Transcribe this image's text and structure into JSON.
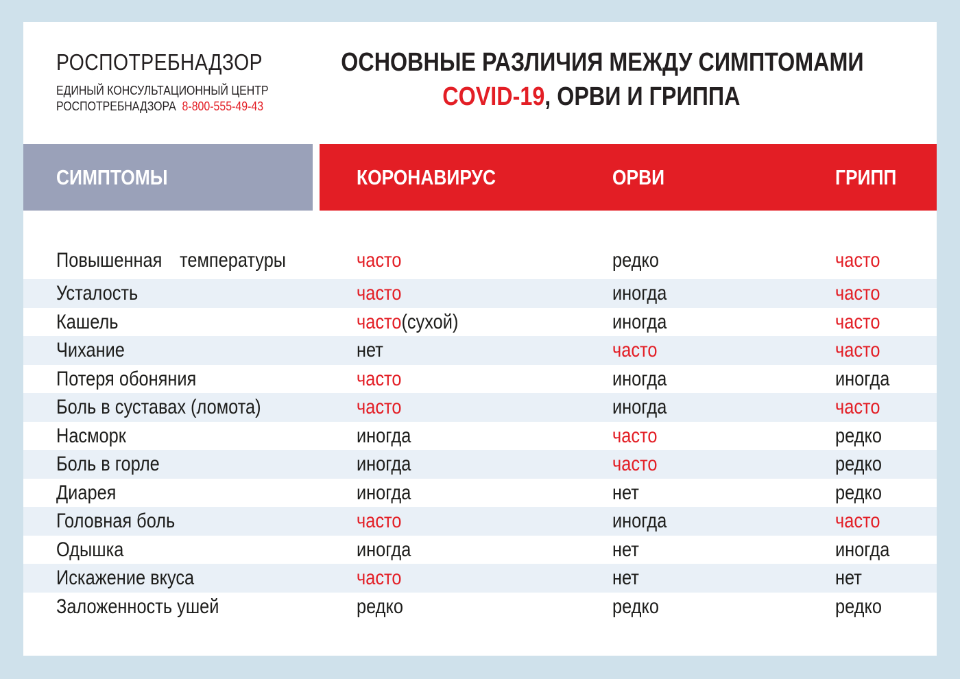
{
  "page": {
    "background_color": "#cfe1eb",
    "card_color": "#ffffff"
  },
  "brand": {
    "name": "РОСПОТРЕБНАДЗОР",
    "sub_line1": "ЕДИНЫЙ КОНСУЛЬТАЦИОННЫЙ ЦЕНТР",
    "sub_line2": "РОСПОТРЕБНАДЗОРА",
    "phone": "8-800-555-49-43"
  },
  "title": {
    "line1": "ОСНОВНЫЕ РАЗЛИЧИЯ МЕЖДУ СИМПТОМАМИ",
    "line2_red": "COVID-19",
    "line2_rest": ", ОРВИ И ГРИППА"
  },
  "colors": {
    "accent_red": "#e31e25",
    "header_gray_blue": "#9aa1b9",
    "row_stripe": "#e9f0f7",
    "text_black": "#1d1d1b"
  },
  "table": {
    "header": {
      "symptoms": "СИМПТОМЫ",
      "covid": "КОРОНАВИРУС",
      "orvi": "ОРВИ",
      "flu": "ГРИПП"
    },
    "rows": [
      {
        "tall": true,
        "stripe": false,
        "symptom_lines": [
          "Повышенная",
          "температуры"
        ],
        "cells": [
          {
            "text": "часто",
            "highlight": true
          },
          {
            "text": "редко",
            "highlight": false
          },
          {
            "text": "часто",
            "highlight": true
          }
        ]
      },
      {
        "stripe": true,
        "symptom_lines": [
          "Усталость"
        ],
        "cells": [
          {
            "text": "часто",
            "highlight": true
          },
          {
            "text": "иногда",
            "highlight": false
          },
          {
            "text": "часто",
            "highlight": true
          }
        ]
      },
      {
        "stripe": false,
        "symptom_lines": [
          "Кашель"
        ],
        "cells": [
          {
            "text": "часто",
            "highlight": true,
            "suffix": "(сухой)"
          },
          {
            "text": "иногда",
            "highlight": false
          },
          {
            "text": "часто",
            "highlight": true
          }
        ]
      },
      {
        "stripe": true,
        "symptom_lines": [
          "Чихание"
        ],
        "cells": [
          {
            "text": "нет",
            "highlight": false
          },
          {
            "text": "часто",
            "highlight": true
          },
          {
            "text": "часто",
            "highlight": true
          }
        ]
      },
      {
        "stripe": false,
        "symptom_lines": [
          "Потеря обоняния"
        ],
        "cells": [
          {
            "text": "часто",
            "highlight": true
          },
          {
            "text": "иногда",
            "highlight": false
          },
          {
            "text": "иногда",
            "highlight": false
          }
        ]
      },
      {
        "stripe": true,
        "symptom_lines": [
          "Боль в суставах (ломота)"
        ],
        "cells": [
          {
            "text": "часто",
            "highlight": true
          },
          {
            "text": "иногда",
            "highlight": false
          },
          {
            "text": "часто",
            "highlight": true
          }
        ]
      },
      {
        "stripe": false,
        "symptom_lines": [
          "Насморк"
        ],
        "cells": [
          {
            "text": "иногда",
            "highlight": false
          },
          {
            "text": "часто",
            "highlight": true
          },
          {
            "text": "редко",
            "highlight": false
          }
        ]
      },
      {
        "stripe": true,
        "symptom_lines": [
          "Боль в горле"
        ],
        "cells": [
          {
            "text": "иногда",
            "highlight": false
          },
          {
            "text": "часто",
            "highlight": true
          },
          {
            "text": "редко",
            "highlight": false
          }
        ]
      },
      {
        "stripe": false,
        "symptom_lines": [
          "Диарея"
        ],
        "cells": [
          {
            "text": "иногда",
            "highlight": false
          },
          {
            "text": "нет",
            "highlight": false
          },
          {
            "text": "редко",
            "highlight": false
          }
        ]
      },
      {
        "stripe": true,
        "symptom_lines": [
          "Головная боль"
        ],
        "cells": [
          {
            "text": "часто",
            "highlight": true
          },
          {
            "text": "иногда",
            "highlight": false
          },
          {
            "text": "часто",
            "highlight": true
          }
        ]
      },
      {
        "stripe": false,
        "symptom_lines": [
          "Одышка"
        ],
        "cells": [
          {
            "text": "иногда",
            "highlight": false
          },
          {
            "text": "нет",
            "highlight": false
          },
          {
            "text": "иногда",
            "highlight": false
          }
        ]
      },
      {
        "stripe": true,
        "symptom_lines": [
          "Искажение вкуса"
        ],
        "cells": [
          {
            "text": "часто",
            "highlight": true
          },
          {
            "text": "нет",
            "highlight": false
          },
          {
            "text": "нет",
            "highlight": false
          }
        ]
      },
      {
        "stripe": false,
        "symptom_lines": [
          "Заложенность ушей"
        ],
        "cells": [
          {
            "text": "редко",
            "highlight": false
          },
          {
            "text": "редко",
            "highlight": false
          },
          {
            "text": "редко",
            "highlight": false
          }
        ]
      }
    ]
  }
}
